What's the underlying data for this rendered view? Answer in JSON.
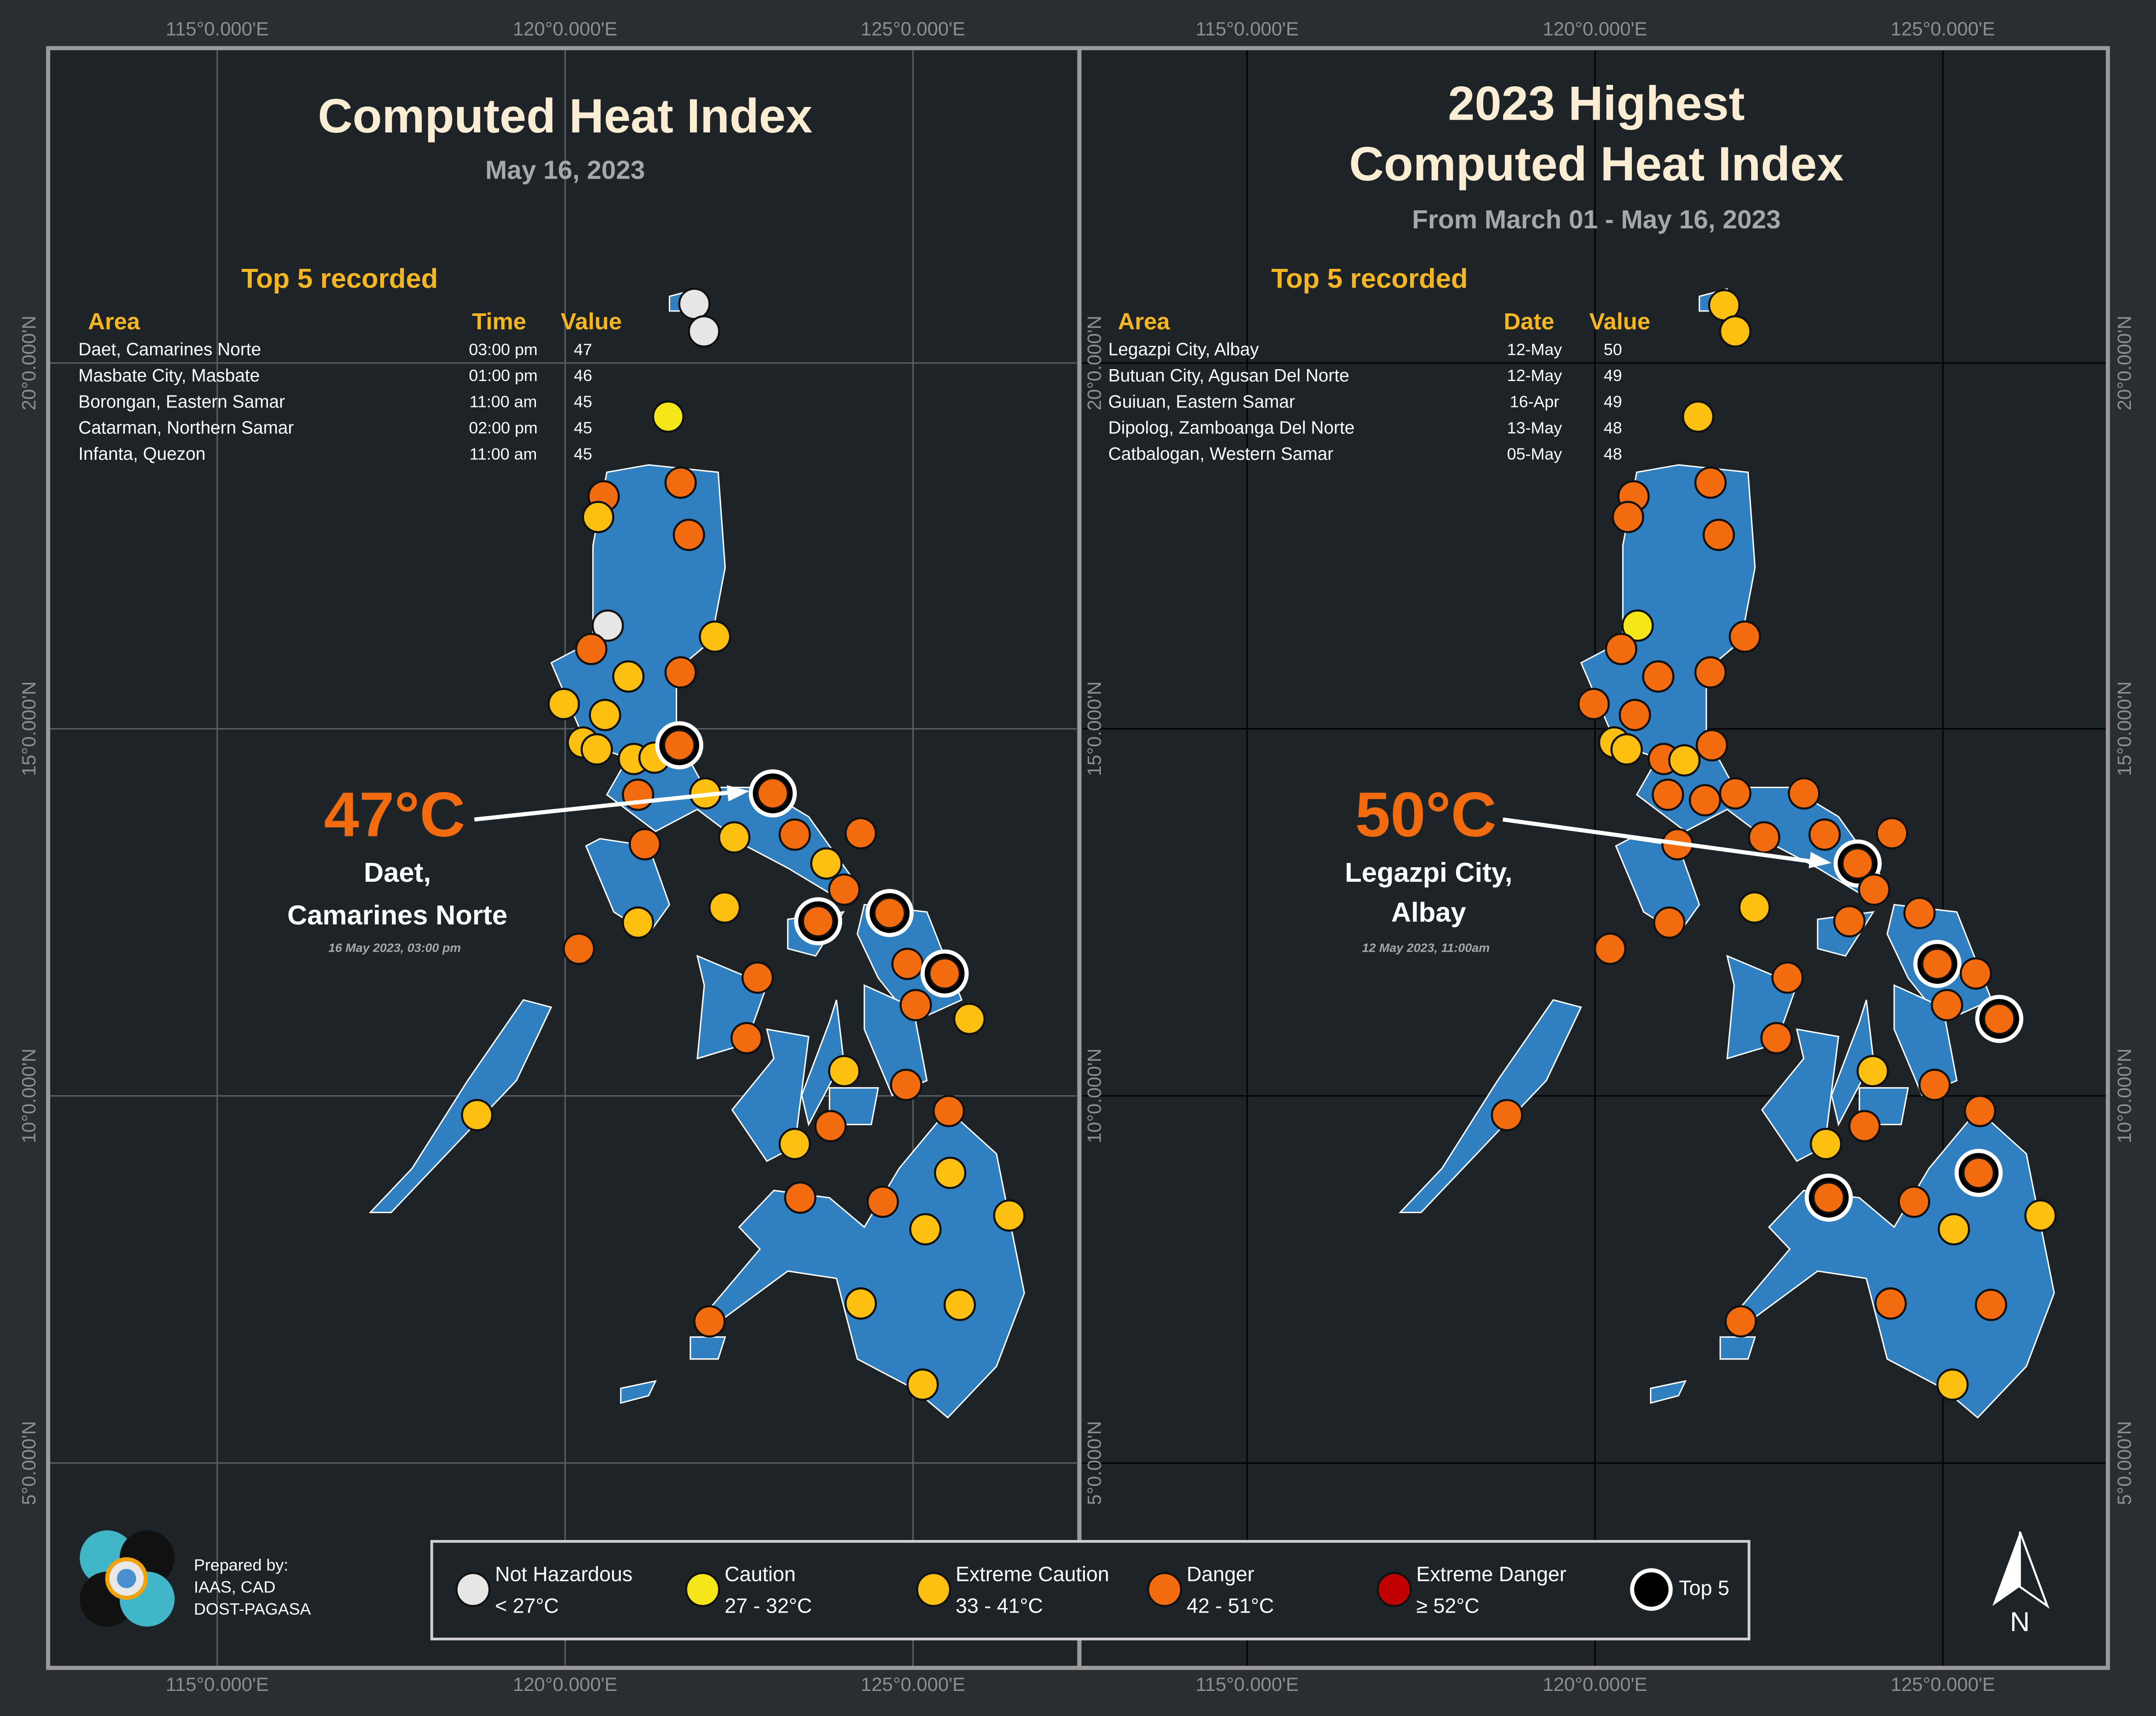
{
  "axes": {
    "x_labels": [
      "115°0.000'E",
      "120°0.000'E",
      "125°0.000'E"
    ],
    "y_labels": [
      "20°0.000'N",
      "15°0.000'N",
      "10°0.000'N",
      "5°0.000'N"
    ]
  },
  "left": {
    "title_lines": [
      "Computed Heat Index"
    ],
    "subtitle": "May 16, 2023",
    "top5_title": "Top 5 recorded",
    "columns": [
      "Area",
      "Time",
      "Value"
    ],
    "rows": [
      [
        "Daet, Camarines Norte",
        "03:00 pm",
        47
      ],
      [
        "Masbate City, Masbate",
        "01:00 pm",
        46
      ],
      [
        "Borongan, Eastern Samar",
        "11:00 am",
        45
      ],
      [
        "Catarman, Northern Samar",
        "02:00 pm",
        45
      ],
      [
        "Infanta, Quezon",
        "11:00 am",
        45
      ]
    ],
    "highlight_value": "47°C",
    "highlight_place": [
      "Daet,",
      "Camarines Norte"
    ],
    "highlight_note": "16 May 2023, 03:00 pm"
  },
  "right": {
    "title_lines": [
      "2023 Highest",
      "Computed Heat Index"
    ],
    "subtitle": "From March 01 - May 16, 2023",
    "top5_title": "Top 5 recorded",
    "columns": [
      "Area",
      "Date",
      "Value"
    ],
    "rows": [
      [
        "Legazpi City, Albay",
        "12-May",
        50
      ],
      [
        "Butuan City, Agusan Del Norte",
        "12-May",
        49
      ],
      [
        "Guiuan, Eastern Samar",
        "16-Apr",
        49
      ],
      [
        "Dipolog, Zamboanga Del Norte",
        "13-May",
        48
      ],
      [
        "Catbalogan, Western Samar",
        "05-May",
        48
      ]
    ],
    "highlight_value": "50°C",
    "highlight_place": [
      "Legazpi City,",
      "Albay"
    ],
    "highlight_note": "12 May 2023, 11:00am"
  },
  "legend": [
    {
      "label": "Not Hazardous",
      "range": "< 27°C"
    },
    {
      "label": "Caution",
      "range": "27 - 32°C"
    },
    {
      "label": "Extreme Caution",
      "range": "33 - 41°C"
    },
    {
      "label": "Danger",
      "range": "42 - 51°C"
    },
    {
      "label": "Extreme Danger",
      "range": "≥ 52°C"
    },
    {
      "label": "Top 5"
    }
  ],
  "credits": [
    "Prepared by:",
    "IAAS, CAD",
    "DOST-PAGASA"
  ],
  "north": "N"
}
